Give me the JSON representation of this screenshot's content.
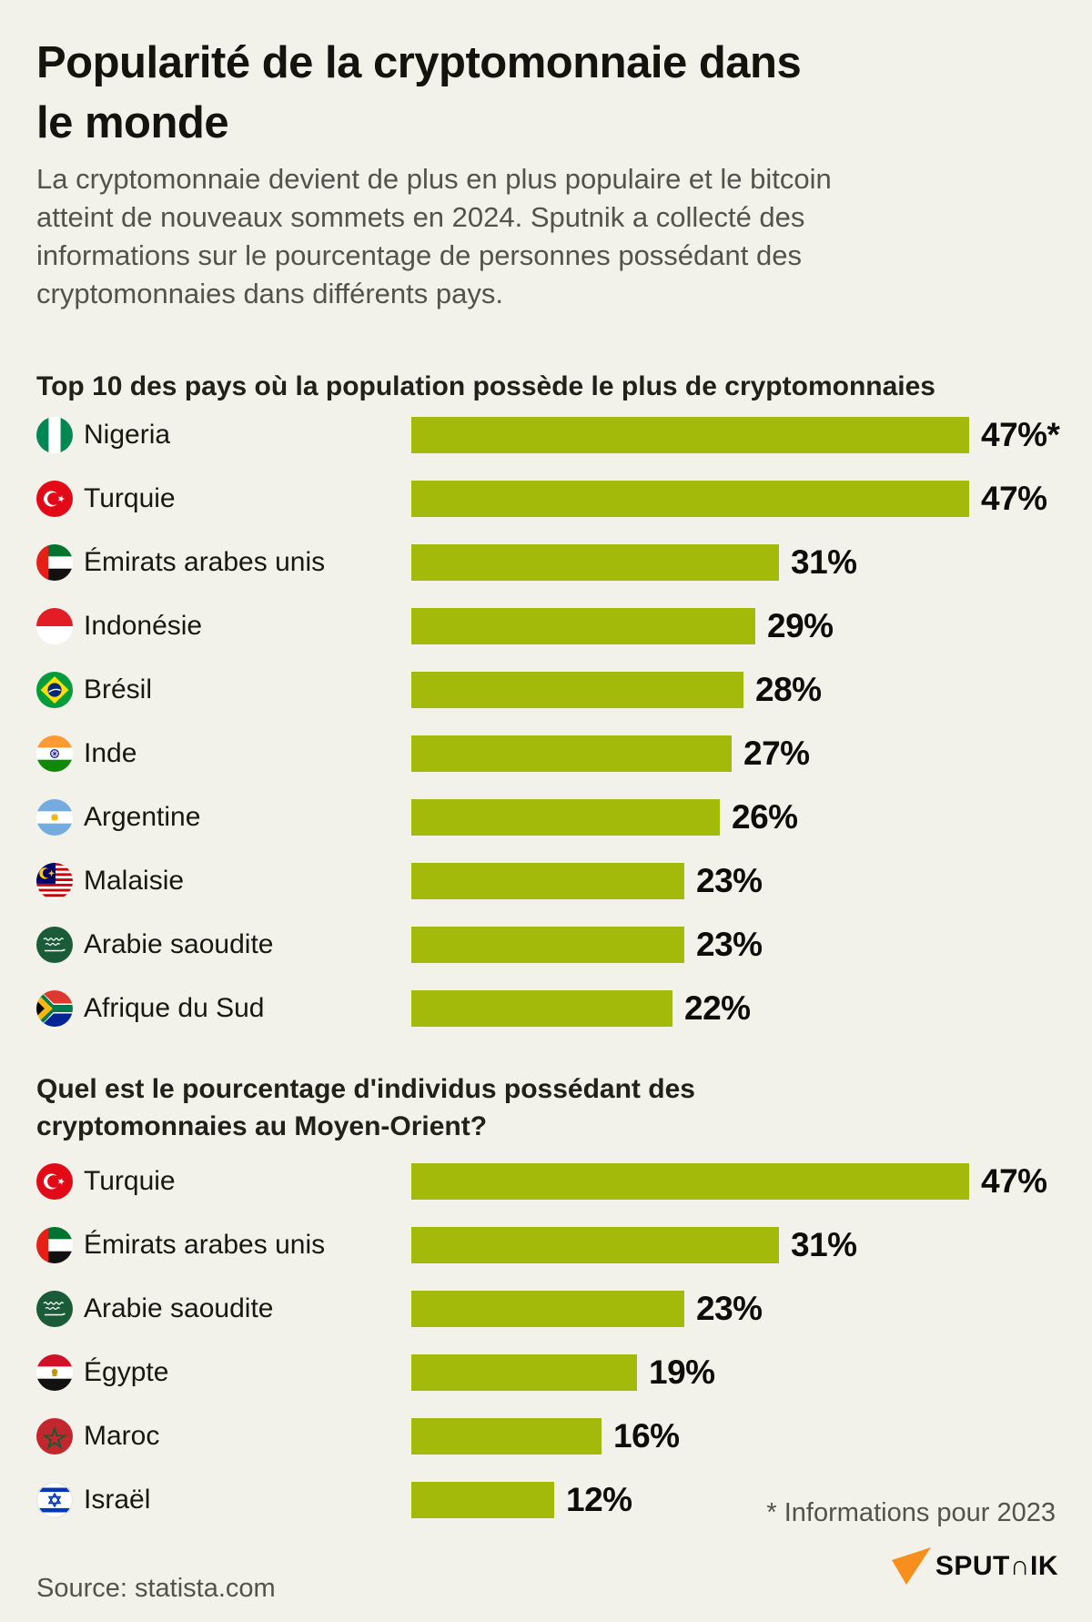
{
  "page": {
    "title": "Popularité de la cryptomonnaie dans le monde",
    "title_lines": [
      "Popularité de la cryptomonnaie dans",
      "le monde"
    ],
    "subtitle": "La cryptomonnaie devient de plus en plus populaire et le bitcoin atteint de nouveaux sommets en 2024. Sputnik a collecté des informations sur le pourcentage de personnes possédant des cryptomonnaies dans différents pays.",
    "subtitle_lines": [
      "La cryptomonnaie devient de plus en plus populaire et le bitcoin",
      "atteint de nouveaux sommets en 2024. Sputnik a collecté des",
      "informations sur le pourcentage de personnes possédant des",
      "cryptomonnaies dans différents pays."
    ],
    "footnote": "* Informations pour 2023",
    "source": "Source: statista.com",
    "brand_name": "SPUTNIK",
    "brand_logo_text": "SPUT∩IK"
  },
  "colors": {
    "background": "#f2f2eb",
    "bar": "#a3ba0a",
    "title_text": "#14130e",
    "muted_text": "#53524c",
    "value_text": "#0e0d0a",
    "sputnik_orange": "#f78f1e"
  },
  "chart_data": [
    {
      "type": "bar",
      "orientation": "horizontal",
      "title": "Top 10 des pays où la population possède le plus de cryptomonnaies",
      "title_lines": [
        "Top 10 des pays où la population possède le plus de cryptomonnaies"
      ],
      "unit": "%",
      "xlim": [
        0,
        47
      ],
      "grid": false,
      "legend": false,
      "bar_color": "#a3ba0a",
      "categories": [
        "Nigeria",
        "Turquie",
        "Émirats arabes unis",
        "Indonésie",
        "Brésil",
        "Inde",
        "Argentine",
        "Malaisie",
        "Arabie saoudite",
        "Afrique du Sud"
      ],
      "values": [
        47,
        47,
        31,
        29,
        28,
        27,
        26,
        23,
        23,
        22
      ],
      "value_labels": [
        "47%*",
        "47%",
        "31%",
        "29%",
        "28%",
        "27%",
        "26%",
        "23%",
        "23%",
        "22%"
      ],
      "flags": [
        "nigeria",
        "turquie",
        "eau",
        "indonesie",
        "bresil",
        "inde",
        "argentine",
        "malaisie",
        "arabie-saoudite",
        "afrique-du-sud"
      ]
    },
    {
      "type": "bar",
      "orientation": "horizontal",
      "title": "Quel est le pourcentage d'individus possédant des cryptomonnaies au Moyen-Orient?",
      "title_lines": [
        "Quel est le pourcentage d'individus possédant des",
        "cryptomonnaies au Moyen-Orient?"
      ],
      "unit": "%",
      "xlim": [
        0,
        47
      ],
      "grid": false,
      "legend": false,
      "bar_color": "#a3ba0a",
      "categories": [
        "Turquie",
        "Émirats arabes unis",
        "Arabie saoudite",
        "Égypte",
        "Maroc",
        "Israël"
      ],
      "values": [
        47,
        31,
        23,
        19,
        16,
        12
      ],
      "value_labels": [
        "47%",
        "31%",
        "23%",
        "19%",
        "16%",
        "12%"
      ],
      "flags": [
        "turquie",
        "eau",
        "arabie-saoudite",
        "egypte",
        "maroc",
        "israel"
      ]
    }
  ]
}
